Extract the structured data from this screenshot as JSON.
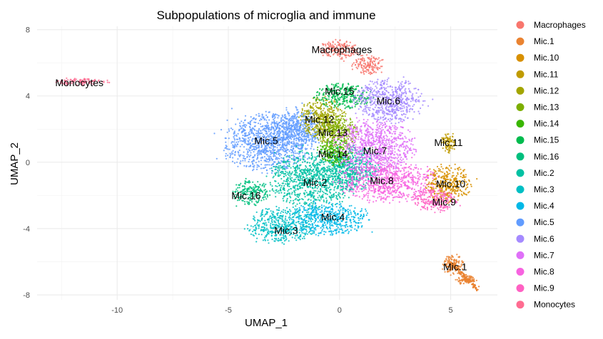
{
  "chart_data": {
    "type": "scatter",
    "title": "Subpopulations of microglia and immune",
    "xlabel": "UMAP_1",
    "ylabel": "UMAP_2",
    "xlim": [
      -13.6,
      7.1
    ],
    "ylim": [
      -8.3,
      8.2
    ],
    "x_ticks": [
      -10,
      -5,
      0,
      5
    ],
    "y_ticks": [
      -8,
      -4,
      0,
      4,
      8
    ],
    "grid": true,
    "legend_position": "right",
    "series": [
      {
        "name": "Macrophages",
        "color": "#F8766D"
      },
      {
        "name": "Mic.1",
        "color": "#EA8331"
      },
      {
        "name": "Mic.10",
        "color": "#D89000"
      },
      {
        "name": "Mic.11",
        "color": "#C09B00"
      },
      {
        "name": "Mic.12",
        "color": "#A3A500"
      },
      {
        "name": "Mic.13",
        "color": "#7CAE00"
      },
      {
        "name": "Mic.14",
        "color": "#39B600"
      },
      {
        "name": "Mic.15",
        "color": "#00BB4E"
      },
      {
        "name": "Mic.16",
        "color": "#00BF7D"
      },
      {
        "name": "Mic.2",
        "color": "#00C1A3"
      },
      {
        "name": "Mic.3",
        "color": "#00BFC4"
      },
      {
        "name": "Mic.4",
        "color": "#00B8E7"
      },
      {
        "name": "Mic.5",
        "color": "#619CFF"
      },
      {
        "name": "Mic.6",
        "color": "#A58AFF"
      },
      {
        "name": "Mic.7",
        "color": "#DF70F8"
      },
      {
        "name": "Mic.8",
        "color": "#F763E0"
      },
      {
        "name": "Mic.9",
        "color": "#FF61C3"
      },
      {
        "name": "Monocytes",
        "color": "#FF6C91"
      }
    ],
    "clusters": [
      {
        "name": "Macrophages",
        "color": "#F8766D",
        "label": "Macrophages",
        "lx": 0.1,
        "ly": 6.8,
        "blobs": [
          {
            "x": -0.1,
            "y": 6.8,
            "rx": 0.9,
            "ry": 0.55
          },
          {
            "x": 1.3,
            "y": 5.9,
            "rx": 0.7,
            "ry": 0.6
          }
        ]
      },
      {
        "name": "Monocytes",
        "color": "#FF6C91",
        "label": "Monocytes",
        "lx": -11.7,
        "ly": 4.8,
        "blobs": [
          {
            "x": -11.6,
            "y": 4.85,
            "rx": 1.2,
            "ry": 0.2
          }
        ]
      },
      {
        "name": "Mic.5",
        "color": "#619CFF",
        "label": "Mic.5",
        "lx": -3.3,
        "ly": 1.3,
        "blobs": [
          {
            "x": -3.2,
            "y": 1.2,
            "rx": 2.0,
            "ry": 1.8
          },
          {
            "x": -2.0,
            "y": 2.0,
            "rx": 1.3,
            "ry": 1.3
          }
        ]
      },
      {
        "name": "Mic.16",
        "color": "#00BF7D",
        "label": "Mic.16",
        "lx": -4.2,
        "ly": -2.0,
        "blobs": [
          {
            "x": -4.0,
            "y": -1.8,
            "rx": 0.8,
            "ry": 0.8
          }
        ]
      },
      {
        "name": "Mic.2",
        "color": "#00C1A3",
        "label": "Mic.2",
        "lx": -1.1,
        "ly": -1.2,
        "blobs": [
          {
            "x": -1.2,
            "y": -1.0,
            "rx": 2.0,
            "ry": 1.7
          },
          {
            "x": 0.6,
            "y": -0.3,
            "rx": 1.2,
            "ry": 1.4
          }
        ]
      },
      {
        "name": "Mic.3",
        "color": "#00BFC4",
        "label": "Mic.3",
        "lx": -2.4,
        "ly": -4.1,
        "blobs": [
          {
            "x": -2.6,
            "y": -3.8,
            "rx": 1.5,
            "ry": 1.1
          }
        ]
      },
      {
        "name": "Mic.4",
        "color": "#00B8E7",
        "label": "Mic.4",
        "lx": -0.3,
        "ly": -3.3,
        "blobs": [
          {
            "x": -0.5,
            "y": -3.4,
            "rx": 1.8,
            "ry": 1.0
          }
        ]
      },
      {
        "name": "Mic.12",
        "color": "#A3A500",
        "label": "Mic.12",
        "lx": -0.9,
        "ly": 2.6,
        "blobs": [
          {
            "x": -0.8,
            "y": 2.6,
            "rx": 1.0,
            "ry": 1.4
          }
        ]
      },
      {
        "name": "Mic.13",
        "color": "#7CAE00",
        "label": "Mic.13",
        "lx": -0.3,
        "ly": 1.8,
        "blobs": [
          {
            "x": -0.1,
            "y": 1.8,
            "rx": 0.9,
            "ry": 1.1
          }
        ]
      },
      {
        "name": "Mic.14",
        "color": "#39B600",
        "label": "Mic.14",
        "lx": -0.3,
        "ly": 0.5,
        "blobs": [
          {
            "x": -0.2,
            "y": 0.6,
            "rx": 0.8,
            "ry": 0.8
          }
        ]
      },
      {
        "name": "Mic.15",
        "color": "#00BB4E",
        "label": "Mic.15",
        "lx": 0.0,
        "ly": 4.3,
        "blobs": [
          {
            "x": 0.2,
            "y": 4.0,
            "rx": 1.3,
            "ry": 0.75
          }
        ]
      },
      {
        "name": "Mic.6",
        "color": "#A58AFF",
        "label": "Mic.6",
        "lx": 2.2,
        "ly": 3.7,
        "blobs": [
          {
            "x": 2.2,
            "y": 3.7,
            "rx": 1.5,
            "ry": 1.4
          }
        ]
      },
      {
        "name": "Mic.7",
        "color": "#DF70F8",
        "label": "Mic.7",
        "lx": 1.6,
        "ly": 0.7,
        "blobs": [
          {
            "x": 1.6,
            "y": 0.9,
            "rx": 1.8,
            "ry": 1.7
          }
        ]
      },
      {
        "name": "Mic.8",
        "color": "#F763E0",
        "label": "Mic.8",
        "lx": 1.9,
        "ly": -1.1,
        "blobs": [
          {
            "x": 2.2,
            "y": -1.2,
            "rx": 2.2,
            "ry": 1.2
          }
        ]
      },
      {
        "name": "Mic.10",
        "color": "#D89000",
        "label": "Mic.10",
        "lx": 5.0,
        "ly": -1.3,
        "blobs": [
          {
            "x": 4.9,
            "y": -1.3,
            "rx": 1.0,
            "ry": 1.2
          }
        ]
      },
      {
        "name": "Mic.9",
        "color": "#FF61C3",
        "label": "Mic.9",
        "lx": 4.7,
        "ly": -2.4,
        "blobs": [
          {
            "x": 4.3,
            "y": -2.3,
            "rx": 1.0,
            "ry": 0.7
          }
        ]
      },
      {
        "name": "Mic.11",
        "color": "#C09B00",
        "label": "Mic.11",
        "lx": 4.9,
        "ly": 1.2,
        "blobs": [
          {
            "x": 4.9,
            "y": 1.2,
            "rx": 0.35,
            "ry": 0.6
          }
        ]
      },
      {
        "name": "Mic.1",
        "color": "#EA8331",
        "label": "Mic.1",
        "lx": 5.2,
        "ly": -6.3,
        "blobs": [
          {
            "x": 5.1,
            "y": -6.2,
            "rx": 0.5,
            "ry": 0.6
          },
          {
            "x": 5.7,
            "y": -7.1,
            "rx": 0.5,
            "ry": 0.3
          }
        ]
      }
    ]
  }
}
